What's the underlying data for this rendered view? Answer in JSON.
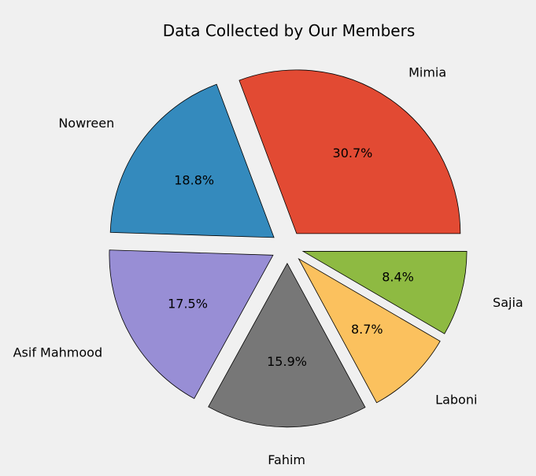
{
  "chart_data": {
    "type": "pie",
    "title": "Data Collected by Our Members",
    "start_angle_deg": 0,
    "direction": "counterclockwise",
    "explode": 0.1,
    "slices": [
      {
        "label": "Mimia",
        "percent": 30.7,
        "percent_label": "30.7%",
        "color": "#e24a33"
      },
      {
        "label": "Nowreen",
        "percent": 18.8,
        "percent_label": "18.8%",
        "color": "#348abd"
      },
      {
        "label": "Asif Mahmood",
        "percent": 17.5,
        "percent_label": "17.5%",
        "color": "#988ed5"
      },
      {
        "label": "Fahim",
        "percent": 15.9,
        "percent_label": "15.9%",
        "color": "#777777"
      },
      {
        "label": "Laboni",
        "percent": 8.7,
        "percent_label": "8.7%",
        "color": "#fbc15e"
      },
      {
        "label": "Sajia",
        "percent": 8.4,
        "percent_label": "8.4%",
        "color": "#8eba42"
      }
    ]
  }
}
